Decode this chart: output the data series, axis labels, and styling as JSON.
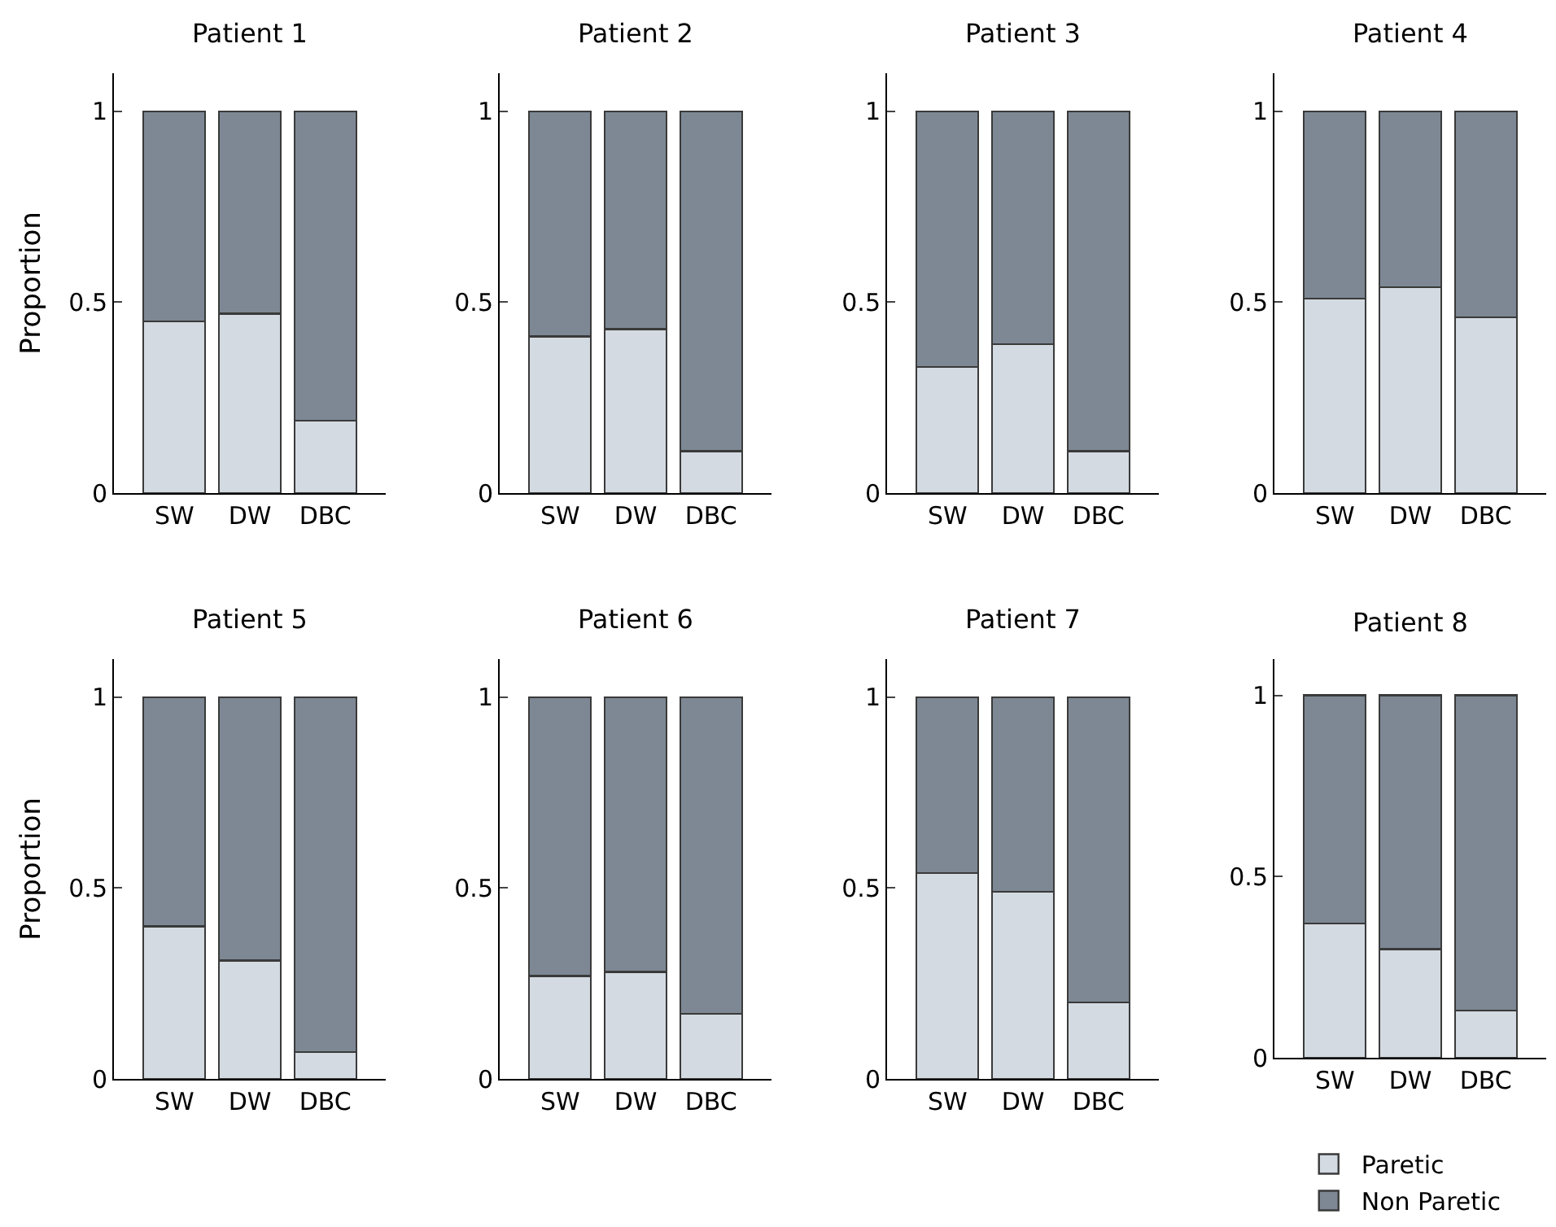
{
  "chart_data": [
    {
      "type": "bar",
      "stacked": true,
      "title": "Patient 1",
      "ylabel": "Proportion",
      "categories": [
        "SW",
        "DW",
        "DBC"
      ],
      "ylim": [
        0,
        1.1
      ],
      "yticks": [
        0,
        0.5,
        1
      ],
      "series": [
        {
          "color": "#d3dae1",
          "values": [
            0.45,
            0.47,
            0.19
          ]
        },
        {
          "color": "#7d8894",
          "values": [
            0.55,
            0.53,
            0.81
          ]
        }
      ]
    },
    {
      "type": "bar",
      "stacked": true,
      "title": "Patient 2",
      "categories": [
        "SW",
        "DW",
        "DBC"
      ],
      "ylim": [
        0,
        1.1
      ],
      "yticks": [
        0,
        0.5,
        1
      ],
      "series": [
        {
          "color": "#d3dae1",
          "values": [
            0.41,
            0.43,
            0.11
          ]
        },
        {
          "color": "#7d8894",
          "values": [
            0.59,
            0.57,
            0.89
          ]
        }
      ]
    },
    {
      "type": "bar",
      "stacked": true,
      "title": "Patient 3",
      "categories": [
        "SW",
        "DW",
        "DBC"
      ],
      "ylim": [
        0,
        1.1
      ],
      "yticks": [
        0,
        0.5,
        1
      ],
      "series": [
        {
          "color": "#d3dae1",
          "values": [
            0.33,
            0.39,
            0.11
          ]
        },
        {
          "color": "#7d8894",
          "values": [
            0.67,
            0.61,
            0.89
          ]
        }
      ]
    },
    {
      "type": "bar",
      "stacked": true,
      "title": "Patient 4",
      "categories": [
        "SW",
        "DW",
        "DBC"
      ],
      "ylim": [
        0,
        1.1
      ],
      "yticks": [
        0,
        0.5,
        1
      ],
      "series": [
        {
          "color": "#d3dae1",
          "values": [
            0.51,
            0.54,
            0.46
          ]
        },
        {
          "color": "#7d8894",
          "values": [
            0.49,
            0.46,
            0.54
          ]
        }
      ]
    },
    {
      "type": "bar",
      "stacked": true,
      "title": "Patient 5",
      "ylabel": "Proportion",
      "categories": [
        "SW",
        "DW",
        "DBC"
      ],
      "ylim": [
        0,
        1.1
      ],
      "yticks": [
        0,
        0.5,
        1
      ],
      "series": [
        {
          "color": "#d3dae1",
          "values": [
            0.4,
            0.31,
            0.07
          ]
        },
        {
          "color": "#7d8894",
          "values": [
            0.6,
            0.69,
            0.93
          ]
        }
      ]
    },
    {
      "type": "bar",
      "stacked": true,
      "title": "Patient 6",
      "categories": [
        "SW",
        "DW",
        "DBC"
      ],
      "ylim": [
        0,
        1.1
      ],
      "yticks": [
        0,
        0.5,
        1
      ],
      "series": [
        {
          "color": "#d3dae1",
          "values": [
            0.27,
            0.28,
            0.17
          ]
        },
        {
          "color": "#7d8894",
          "values": [
            0.73,
            0.72,
            0.83
          ]
        }
      ]
    },
    {
      "type": "bar",
      "stacked": true,
      "title": "Patient 7",
      "categories": [
        "SW",
        "DW",
        "DBC"
      ],
      "ylim": [
        0,
        1.1
      ],
      "yticks": [
        0,
        0.5,
        1
      ],
      "series": [
        {
          "color": "#d3dae1",
          "values": [
            0.54,
            0.49,
            0.2
          ]
        },
        {
          "color": "#7d8894",
          "values": [
            0.46,
            0.51,
            0.8
          ]
        }
      ]
    },
    {
      "type": "bar",
      "stacked": true,
      "title": "Patient 8",
      "categories": [
        "SW",
        "DW",
        "DBC"
      ],
      "ylim": [
        0,
        1.1
      ],
      "yticks": [
        0,
        0.5,
        1
      ],
      "legend": "bottom right",
      "series": [
        {
          "name": "Paretic",
          "color": "#d3dae1",
          "values": [
            0.37,
            0.3,
            0.13
          ]
        },
        {
          "name": "Non Paretic",
          "color": "#7d8894",
          "values": [
            0.63,
            0.7,
            0.87
          ]
        }
      ]
    }
  ]
}
